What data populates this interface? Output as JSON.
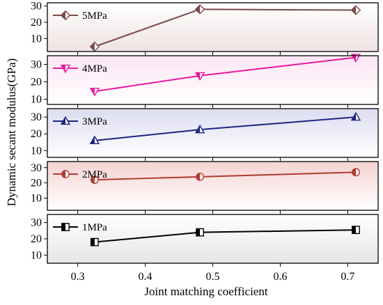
{
  "chart_data": {
    "type": "line",
    "xlabel": "Joint matching coefficient",
    "ylabel": "Dynamic secant modulus(GPa)",
    "xlim": [
      0.255,
      0.745
    ],
    "xticks": [
      0.3,
      0.4,
      0.5,
      0.6,
      0.7
    ],
    "xtick_labels": [
      "0.3",
      "0.4",
      "0.5",
      "0.6",
      "0.7"
    ],
    "panels": [
      {
        "name": "5MPa",
        "marker": "diamond",
        "color": "#7a4a4a",
        "background": [
          "#ffffff",
          "#efe2e2"
        ],
        "ylim": [
          2,
          32
        ],
        "yticks": [
          10,
          20,
          30
        ],
        "x": [
          0.325,
          0.481,
          0.712
        ],
        "y": [
          5.0,
          28.0,
          27.5
        ]
      },
      {
        "name": "4MPa",
        "marker": "triangle-down",
        "color": "#e8189c",
        "background": [
          "#fce6f4",
          "#ffffff"
        ],
        "ylim": [
          7,
          35
        ],
        "yticks": [
          10,
          20,
          30
        ],
        "x": [
          0.325,
          0.481,
          0.712
        ],
        "y": [
          14.5,
          23.5,
          34.0
        ]
      },
      {
        "name": "3MPa",
        "marker": "triangle-up",
        "color": "#1e2480",
        "background": [
          "#dcdcf2",
          "#ffffff"
        ],
        "ylim": [
          6,
          35
        ],
        "yticks": [
          10,
          20,
          30
        ],
        "x": [
          0.325,
          0.481,
          0.712
        ],
        "y": [
          16.0,
          22.5,
          30.0
        ]
      },
      {
        "name": "2MPa",
        "marker": "circle",
        "color": "#b03a2e",
        "background": [
          "#f6d3d3",
          "#ffffff"
        ],
        "ylim": [
          2,
          34
        ],
        "yticks": [
          10,
          20,
          30
        ],
        "x": [
          0.325,
          0.481,
          0.712
        ],
        "y": [
          22.0,
          24.0,
          27.0
        ]
      },
      {
        "name": "1MPa",
        "marker": "square",
        "color": "#000000",
        "background": [
          "#ffffff",
          "#e6e6e6"
        ],
        "ylim": [
          5,
          35
        ],
        "yticks": [
          10,
          20,
          30
        ],
        "x": [
          0.325,
          0.481,
          0.712
        ],
        "y": [
          18.0,
          24.0,
          25.5
        ]
      }
    ]
  }
}
